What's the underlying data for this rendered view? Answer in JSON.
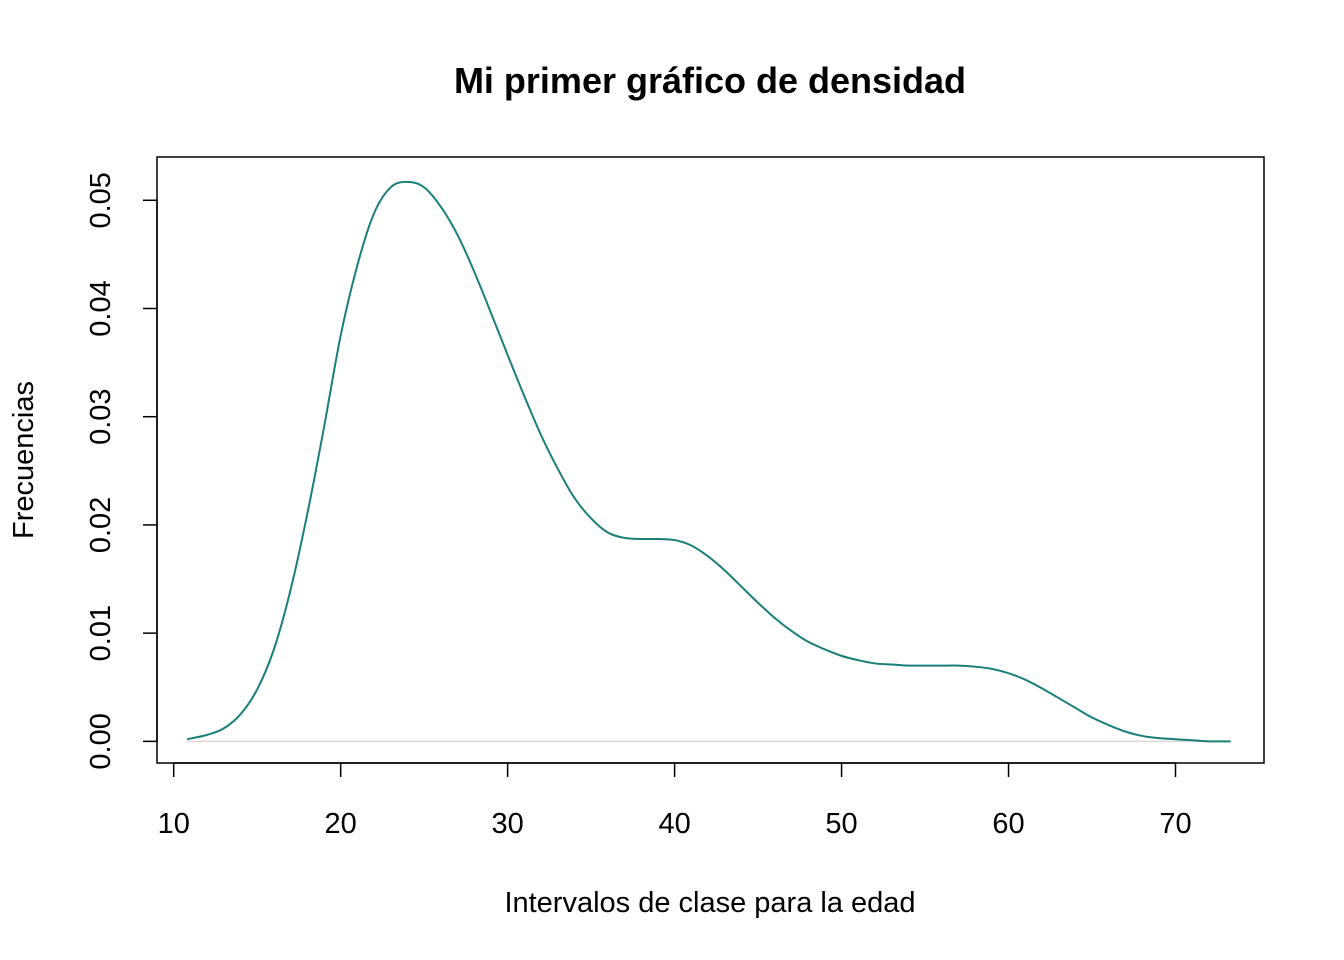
{
  "chart_data": {
    "type": "line",
    "title": "Mi primer gráfico de densidad",
    "xlabel": "Intervalos de clase para la edad",
    "ylabel": "Frecuencias",
    "xlim": [
      9.0,
      75.3
    ],
    "ylim": [
      -0.002,
      0.054
    ],
    "x_ticks": [
      10,
      20,
      30,
      40,
      50,
      60,
      70
    ],
    "x_tick_labels": [
      "10",
      "20",
      "30",
      "40",
      "50",
      "60",
      "70"
    ],
    "y_ticks": [
      0.0,
      0.01,
      0.02,
      0.03,
      0.04,
      0.05
    ],
    "y_tick_labels": [
      "0.00",
      "0.01",
      "0.02",
      "0.03",
      "0.04",
      "0.05"
    ],
    "grid": false,
    "baseline": 0,
    "baseline_color": "#d9d9d9",
    "line_color": "#1a7f7a",
    "series": [
      {
        "x": [
          10.8,
          12,
          13,
          14,
          15,
          16,
          17,
          18,
          19,
          20,
          21,
          22,
          23,
          24,
          25,
          26,
          27,
          28,
          29,
          30,
          31,
          32,
          33,
          34,
          35,
          36,
          37,
          38,
          39,
          40,
          41,
          42,
          43,
          44,
          45,
          46,
          47,
          48,
          49,
          50,
          51,
          52,
          53,
          54,
          55,
          56,
          57,
          58,
          59,
          60,
          61,
          62,
          63,
          64,
          65,
          66,
          67,
          68,
          69,
          70,
          71,
          72,
          73.3
        ],
        "y": [
          0.0002,
          0.0006,
          0.0012,
          0.0025,
          0.0048,
          0.0085,
          0.014,
          0.021,
          0.029,
          0.0375,
          0.044,
          0.0488,
          0.0512,
          0.0517,
          0.0512,
          0.0494,
          0.0468,
          0.0434,
          0.0396,
          0.0357,
          0.0319,
          0.0283,
          0.0252,
          0.0225,
          0.0206,
          0.0193,
          0.0188,
          0.0187,
          0.0187,
          0.0186,
          0.0181,
          0.0171,
          0.0158,
          0.0143,
          0.0128,
          0.0114,
          0.0102,
          0.0092,
          0.0085,
          0.0079,
          0.0075,
          0.0072,
          0.0071,
          0.007,
          0.007,
          0.007,
          0.007,
          0.0069,
          0.0067,
          0.0063,
          0.0057,
          0.0049,
          0.004,
          0.0031,
          0.0022,
          0.0015,
          0.0009,
          0.0005,
          0.0003,
          0.0002,
          0.0001,
          0.0,
          0.0
        ]
      }
    ]
  }
}
